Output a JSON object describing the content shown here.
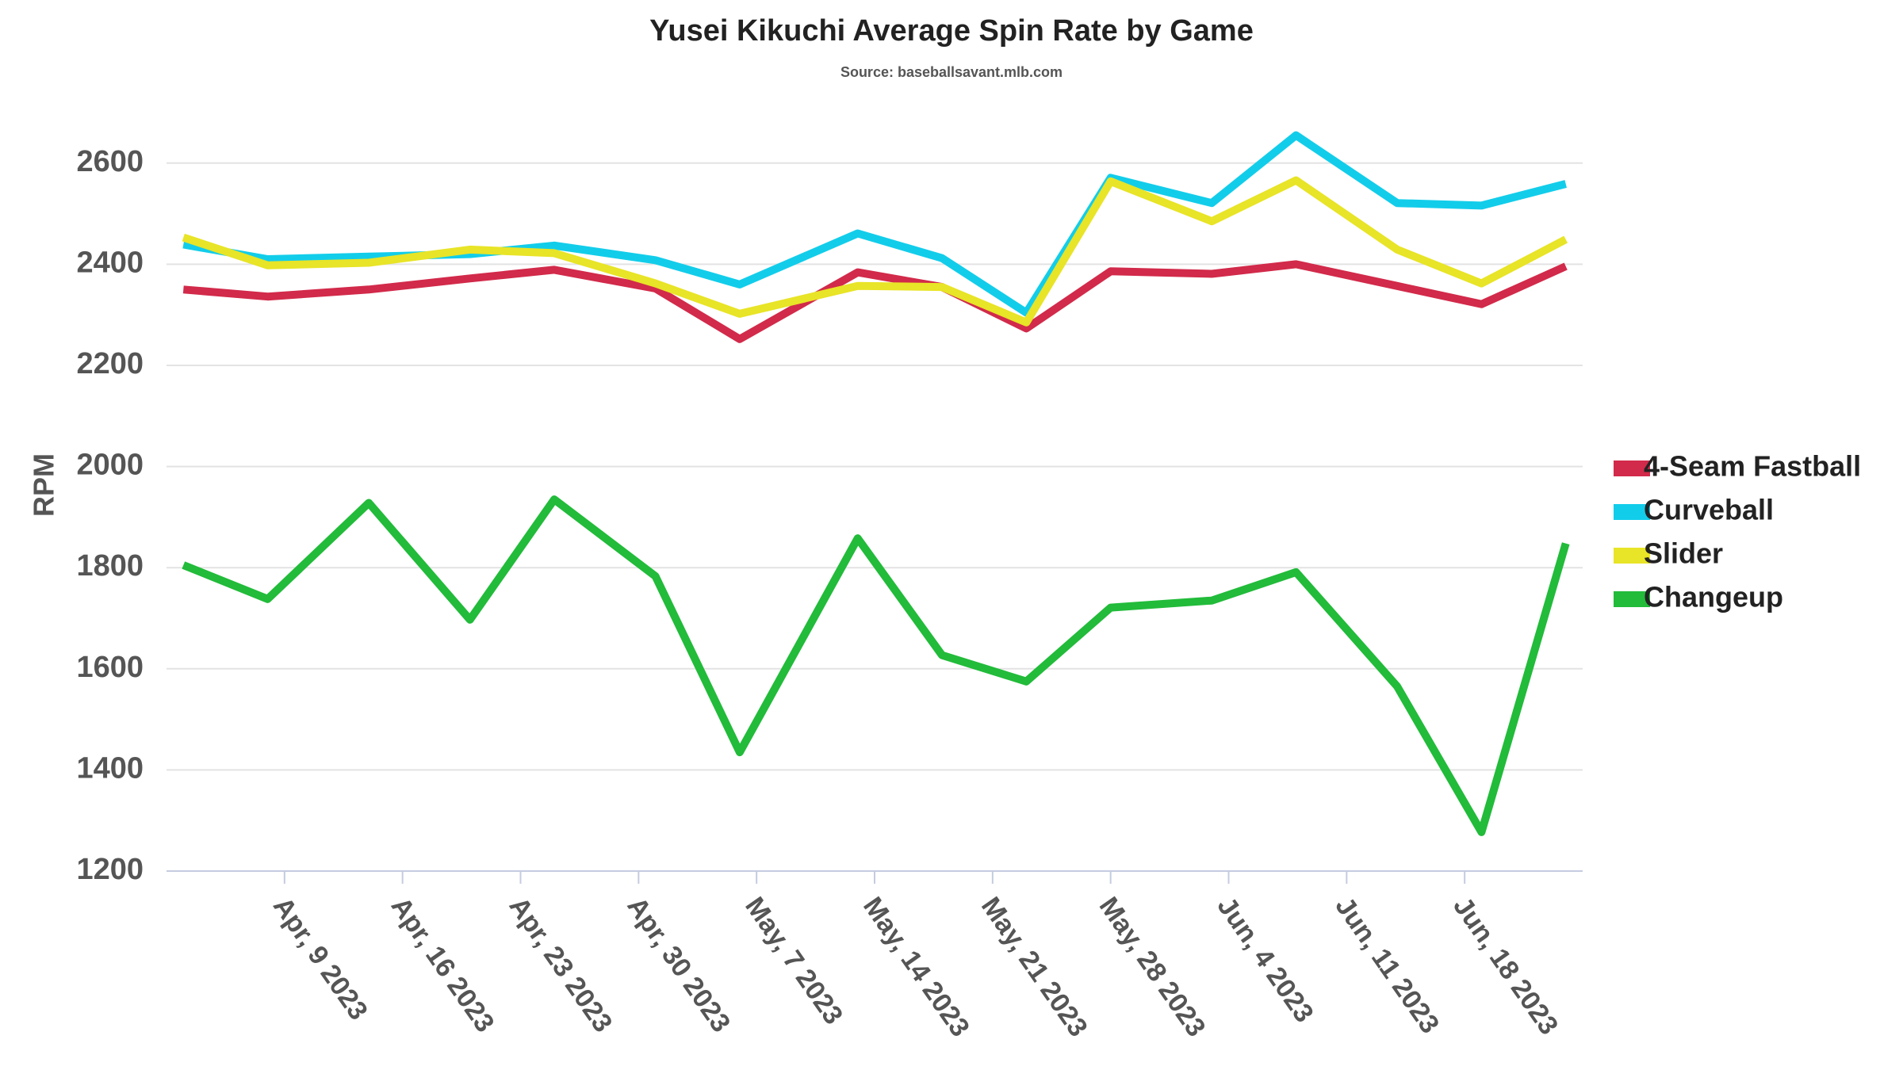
{
  "chart_data": {
    "type": "line",
    "title": "Yusei Kikuchi Average Spin Rate by Game",
    "subtitle": "Source: baseballsavant.mlb.com",
    "y_label": "RPM",
    "x": [
      "2023-04-03",
      "2023-04-08",
      "2023-04-14",
      "2023-04-20",
      "2023-04-25",
      "2023-05-01",
      "2023-05-06",
      "2023-05-13",
      "2023-05-18",
      "2023-05-23",
      "2023-05-28",
      "2023-06-03",
      "2023-06-08",
      "2023-06-14",
      "2023-06-19",
      "2023-06-24"
    ],
    "series": [
      {
        "name": "4-Seam Fastball",
        "color": "#d22a4a",
        "values": [
          2350,
          2336,
          2350,
          2372,
          2389,
          2352,
          2252,
          2384,
          2355,
          2273,
          2386,
          2381,
          2400,
          2357,
          2321,
          2396
        ]
      },
      {
        "name": "Curveball",
        "color": "#12cdea",
        "values": [
          2439,
          2410,
          2415,
          2420,
          2437,
          2408,
          2360,
          2461,
          2412,
          2304,
          2571,
          2521,
          2655,
          2521,
          2516,
          2559
        ]
      },
      {
        "name": "Slider",
        "color": "#e8e427",
        "values": [
          2453,
          2398,
          2403,
          2429,
          2422,
          2362,
          2302,
          2357,
          2355,
          2285,
          2564,
          2485,
          2566,
          2429,
          2362,
          2449
        ]
      },
      {
        "name": "Changeup",
        "color": "#22bb3a",
        "values": [
          1805,
          1738,
          1928,
          1697,
          1935,
          1783,
          1435,
          1858,
          1627,
          1575,
          1721,
          1735,
          1791,
          1565,
          1277,
          1848
        ]
      }
    ],
    "xlim": [
      "2023-04-02",
      "2023-06-25"
    ],
    "xticks": [
      {
        "value": "2023-04-09",
        "label": "Apr, 9 2023"
      },
      {
        "value": "2023-04-16",
        "label": "Apr, 16 2023"
      },
      {
        "value": "2023-04-23",
        "label": "Apr, 23 2023"
      },
      {
        "value": "2023-04-30",
        "label": "Apr, 30 2023"
      },
      {
        "value": "2023-05-07",
        "label": "May, 7 2023"
      },
      {
        "value": "2023-05-14",
        "label": "May, 14 2023"
      },
      {
        "value": "2023-05-21",
        "label": "May, 21 2023"
      },
      {
        "value": "2023-05-28",
        "label": "May, 28 2023"
      },
      {
        "value": "2023-06-04",
        "label": "Jun, 4 2023"
      },
      {
        "value": "2023-06-11",
        "label": "Jun, 11 2023"
      },
      {
        "value": "2023-06-18",
        "label": "Jun, 18 2023"
      }
    ],
    "ylim": [
      1200,
      2700
    ],
    "yticks": [
      1200,
      1400,
      1600,
      1800,
      2000,
      2200,
      2400,
      2600
    ],
    "grid": true,
    "legend": "right"
  }
}
